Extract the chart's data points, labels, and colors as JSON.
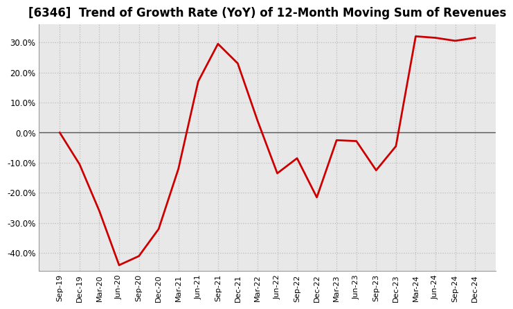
{
  "title": "[6346]  Trend of Growth Rate (YoY) of 12-Month Moving Sum of Revenues",
  "title_fontsize": 12,
  "line_color": "#cc0000",
  "line_width": 2.0,
  "background_color": "#ffffff",
  "plot_bg_color": "#e8e8e8",
  "grid_color": "#bbbbbb",
  "zero_line_color": "#555555",
  "xlabels": [
    "Sep-19",
    "Dec-19",
    "Mar-20",
    "Jun-20",
    "Sep-20",
    "Dec-20",
    "Mar-21",
    "Jun-21",
    "Sep-21",
    "Dec-21",
    "Mar-22",
    "Jun-22",
    "Sep-22",
    "Dec-22",
    "Mar-23",
    "Jun-23",
    "Sep-23",
    "Dec-23",
    "Mar-24",
    "Jun-24",
    "Sep-24",
    "Dec-24"
  ],
  "values": [
    0.0,
    -10.5,
    -26.0,
    -44.0,
    -41.0,
    -32.0,
    -12.0,
    17.0,
    29.5,
    23.0,
    4.0,
    -13.5,
    -8.5,
    -21.5,
    -2.5,
    -2.8,
    -12.5,
    -4.5,
    32.0,
    31.5,
    30.5,
    31.5
  ],
  "ylim": [
    -46,
    36
  ],
  "yticks": [
    -40.0,
    -30.0,
    -20.0,
    -10.0,
    0.0,
    10.0,
    20.0,
    30.0
  ],
  "figsize": [
    7.2,
    4.4
  ],
  "dpi": 100
}
